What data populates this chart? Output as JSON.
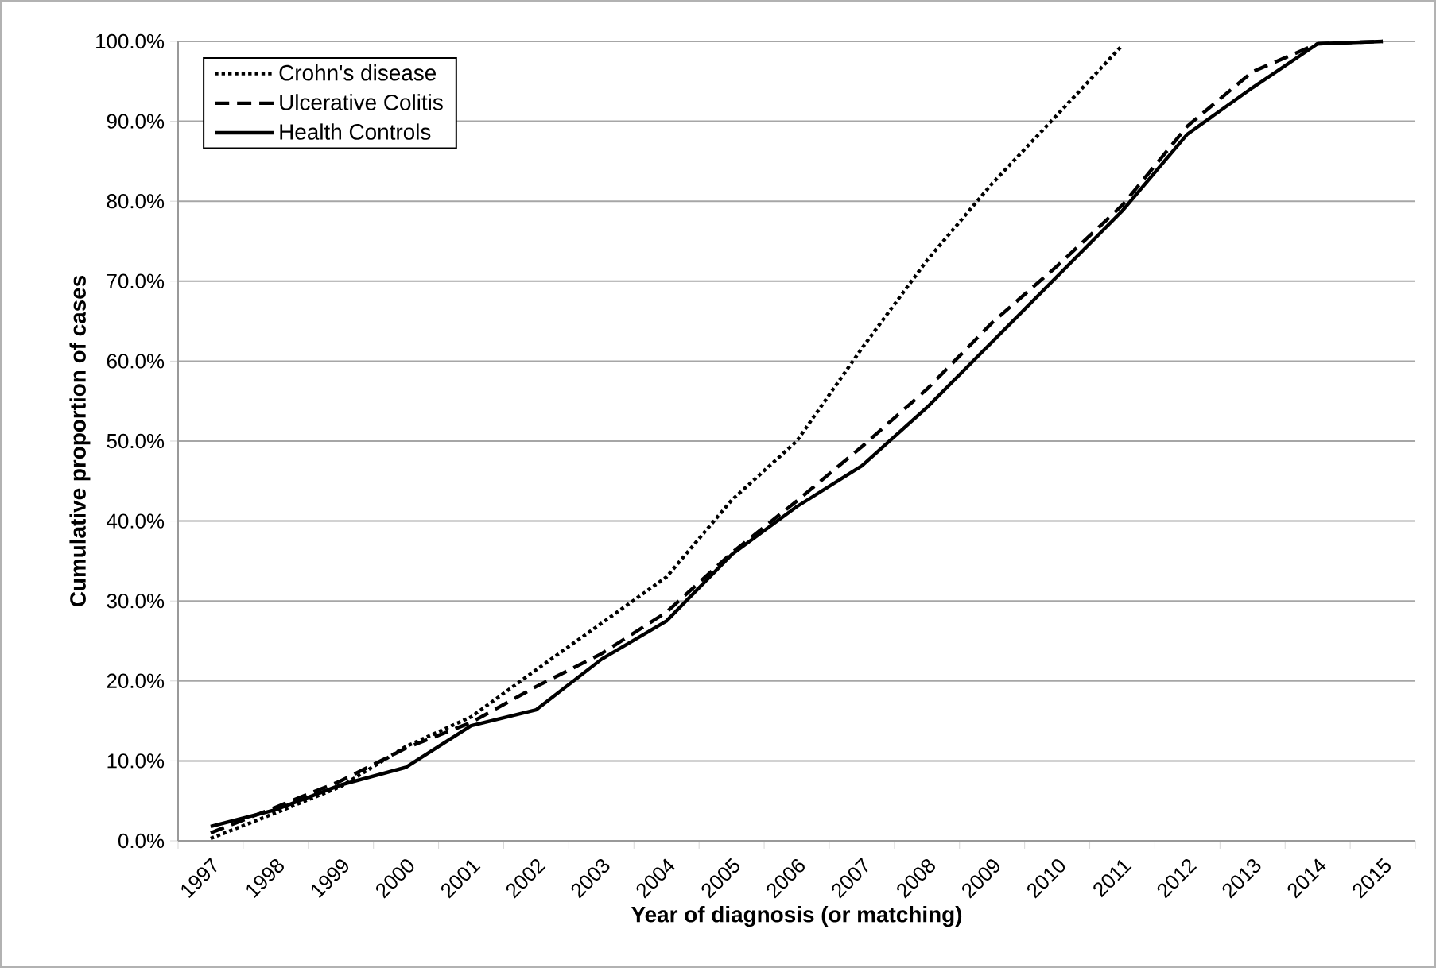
{
  "chart_data": {
    "type": "line",
    "xlabel": "Year of diagnosis (or matching)",
    "ylabel": "Cumulative proportion of cases",
    "categories": [
      "1997",
      "1998",
      "1999",
      "2000",
      "2001",
      "2002",
      "2003",
      "2004",
      "2005",
      "2006",
      "2007",
      "2008",
      "2009",
      "2010",
      "2011",
      "2012",
      "2013",
      "2014",
      "2015"
    ],
    "series": [
      {
        "name": "Crohn's disease",
        "color": "#000000",
        "line_style": "dotted",
        "values": [
          0.3,
          3.5,
          6.8,
          11.8,
          15.5,
          21.4,
          27.2,
          33.0,
          42.6,
          50.0,
          61.6,
          72.6,
          82.2,
          90.8,
          99.5,
          null,
          null,
          null,
          null
        ]
      },
      {
        "name": "Ulcerative Colitis",
        "color": "#000000",
        "line_style": "dashed",
        "values": [
          1.0,
          4.2,
          7.5,
          11.6,
          14.8,
          19.3,
          23.4,
          28.6,
          36.0,
          42.5,
          49.3,
          56.5,
          64.8,
          71.9,
          79.5,
          89.4,
          96.2,
          99.7,
          100
        ]
      },
      {
        "name": "Health Controls",
        "color": "#000000",
        "line_style": "solid",
        "values": [
          1.8,
          3.9,
          7.0,
          9.2,
          14.4,
          16.4,
          22.7,
          27.5,
          35.8,
          41.8,
          46.9,
          54.2,
          62.4,
          70.6,
          78.8,
          88.4,
          94.2,
          99.7,
          100
        ]
      }
    ],
    "ylim": [
      0,
      100
    ],
    "yticks": [
      {
        "value": 0,
        "label": "0.0%"
      },
      {
        "value": 10,
        "label": "10.0%"
      },
      {
        "value": 20,
        "label": "20.0%"
      },
      {
        "value": 30,
        "label": "30.0%"
      },
      {
        "value": 40,
        "label": "40.0%"
      },
      {
        "value": 50,
        "label": "50.0%"
      },
      {
        "value": 60,
        "label": "60.0%"
      },
      {
        "value": 70,
        "label": "70.0%"
      },
      {
        "value": 80,
        "label": "80.0%"
      },
      {
        "value": 90,
        "label": "90.0%"
      },
      {
        "value": 100,
        "label": "100.0%"
      }
    ],
    "grid": "y",
    "legend": "top left",
    "marker": "none"
  }
}
